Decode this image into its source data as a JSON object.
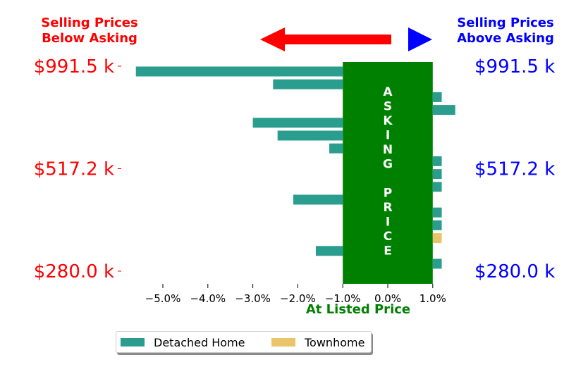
{
  "chart_data": {
    "type": "bar",
    "orientation": "horizontal",
    "xlabel": "At Listed Price",
    "x_ticks": [
      "−5.0%",
      "−4.0%",
      "−3.0%",
      "−2.0%",
      "−1.0%",
      "0.0%",
      "1.0%"
    ],
    "x_tick_values": [
      -5,
      -4,
      -3,
      -2,
      -1,
      0,
      1
    ],
    "xlim": [
      -5.8,
      1.6
    ],
    "y_tick_labels_left": [
      "$991.5 k",
      "$517.2 k",
      "$280.0 k"
    ],
    "y_tick_labels_right": [
      "$991.5 k",
      "$517.2 k",
      "$280.0 k"
    ],
    "header_left": [
      "Selling Prices",
      "Below Asking"
    ],
    "header_right": [
      "Selling Prices",
      "Above Asking"
    ],
    "asking_band": {
      "x_range": [
        -1.0,
        1.0
      ],
      "text": "ASKING PRICE",
      "letters": [
        "A",
        "S",
        "K",
        "I",
        "N",
        "G",
        "",
        "P",
        "R",
        "I",
        "C",
        "E"
      ]
    },
    "series": [
      {
        "name": "Detached Home",
        "color": "#2a9d8f",
        "values": [
          {
            "row": 0,
            "value": -5.6
          },
          {
            "row": 1,
            "value": -2.55
          },
          {
            "row": 2,
            "value": 1.2
          },
          {
            "row": 3,
            "value": 1.5
          },
          {
            "row": 4,
            "value": -3.0
          },
          {
            "row": 5,
            "value": -2.45
          },
          {
            "row": 6,
            "value": -1.3
          },
          {
            "row": 7,
            "value": 1.2
          },
          {
            "row": 8,
            "value": 1.2
          },
          {
            "row": 9,
            "value": 1.2
          },
          {
            "row": 10,
            "value": -2.1
          },
          {
            "row": 11,
            "value": 1.2
          },
          {
            "row": 12,
            "value": 1.2
          },
          {
            "row": 14,
            "value": -1.6
          },
          {
            "row": 15,
            "value": 1.2
          }
        ]
      },
      {
        "name": "Townhome",
        "color": "#e9c46a",
        "values": [
          {
            "row": 13,
            "value": 1.2
          }
        ]
      }
    ],
    "row_count": 16,
    "legend_position": "bottom",
    "colors": {
      "below": "#ff0000",
      "above": "#0000ff",
      "asking": "#008000",
      "arrow_left": "#ff0000",
      "arrow_right": "#0000ff"
    }
  }
}
